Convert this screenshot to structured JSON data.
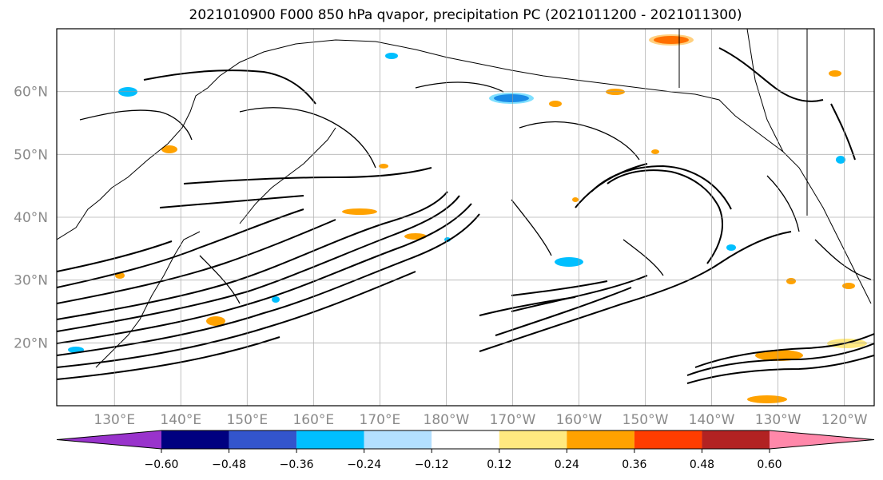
{
  "title": "2021010900 F000 850 hPa qvapor, precipitation PC (2021011200 - 2021011300)",
  "map": {
    "lat_ticks": [
      "60°N",
      "50°N",
      "40°N",
      "30°N",
      "20°N"
    ],
    "lat_values": [
      60,
      50,
      40,
      30,
      20
    ],
    "lon_ticks": [
      "130°E",
      "140°E",
      "150°E",
      "160°E",
      "170°E",
      "180°W",
      "170°W",
      "160°W",
      "150°W",
      "140°W",
      "130°W",
      "120°W"
    ],
    "lon_values": [
      130,
      140,
      150,
      160,
      170,
      180,
      190,
      200,
      210,
      220,
      230,
      240
    ],
    "lon_range": [
      121.3,
      244.5
    ],
    "lat_range": [
      10,
      70
    ]
  },
  "colorbar": {
    "ticks": [
      "−0.60",
      "−0.48",
      "−0.36",
      "−0.24",
      "−0.12",
      "0.12",
      "0.24",
      "0.36",
      "0.48",
      "0.60"
    ],
    "colors": [
      "#9933cc",
      "#000080",
      "#3355cc",
      "#00bfff",
      "#b3e0ff",
      "#ffffff",
      "#ffe980",
      "#ffa200",
      "#ff3d00",
      "#b22222",
      "#ff88aa"
    ]
  }
}
